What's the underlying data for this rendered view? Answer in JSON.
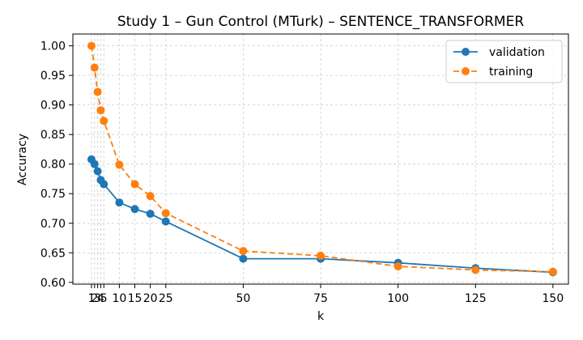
{
  "chart_data": {
    "type": "line",
    "title": "Study 1 – Gun Control (MTurk) – SENTENCE_TRANSFORMER",
    "xlabel": "k",
    "ylabel": "Accuracy",
    "xlim": [
      -5,
      155
    ],
    "ylim": [
      0.597,
      1.02
    ],
    "x": [
      1,
      2,
      3,
      4,
      5,
      10,
      15,
      20,
      25,
      50,
      75,
      100,
      125,
      150
    ],
    "xticks": [
      1,
      2,
      3,
      4,
      5,
      10,
      15,
      20,
      25,
      50,
      75,
      100,
      125,
      150
    ],
    "xtick_labels": [
      "1",
      "2",
      "3",
      "4",
      "5",
      "10",
      "15",
      "20",
      "25",
      "50",
      "75",
      "100",
      "125",
      "150"
    ],
    "yticks": [
      0.6,
      0.65,
      0.7,
      0.75,
      0.8,
      0.85,
      0.9,
      0.95,
      1.0
    ],
    "ytick_labels": [
      "0.60",
      "0.65",
      "0.70",
      "0.75",
      "0.80",
      "0.85",
      "0.90",
      "0.95",
      "1.00"
    ],
    "grid": true,
    "legend_position": "top-right",
    "series": [
      {
        "name": "validation",
        "color": "#1f77b4",
        "dash": "solid",
        "values": [
          0.808,
          0.8,
          0.788,
          0.773,
          0.766,
          0.735,
          0.724,
          0.716,
          0.703,
          0.64,
          0.64,
          0.633,
          0.624,
          0.617
        ]
      },
      {
        "name": "training",
        "color": "#ff7f0e",
        "dash": "dashed",
        "values": [
          1.0,
          0.963,
          0.922,
          0.891,
          0.873,
          0.799,
          0.766,
          0.746,
          0.717,
          0.653,
          0.645,
          0.627,
          0.621,
          0.618
        ]
      }
    ]
  }
}
